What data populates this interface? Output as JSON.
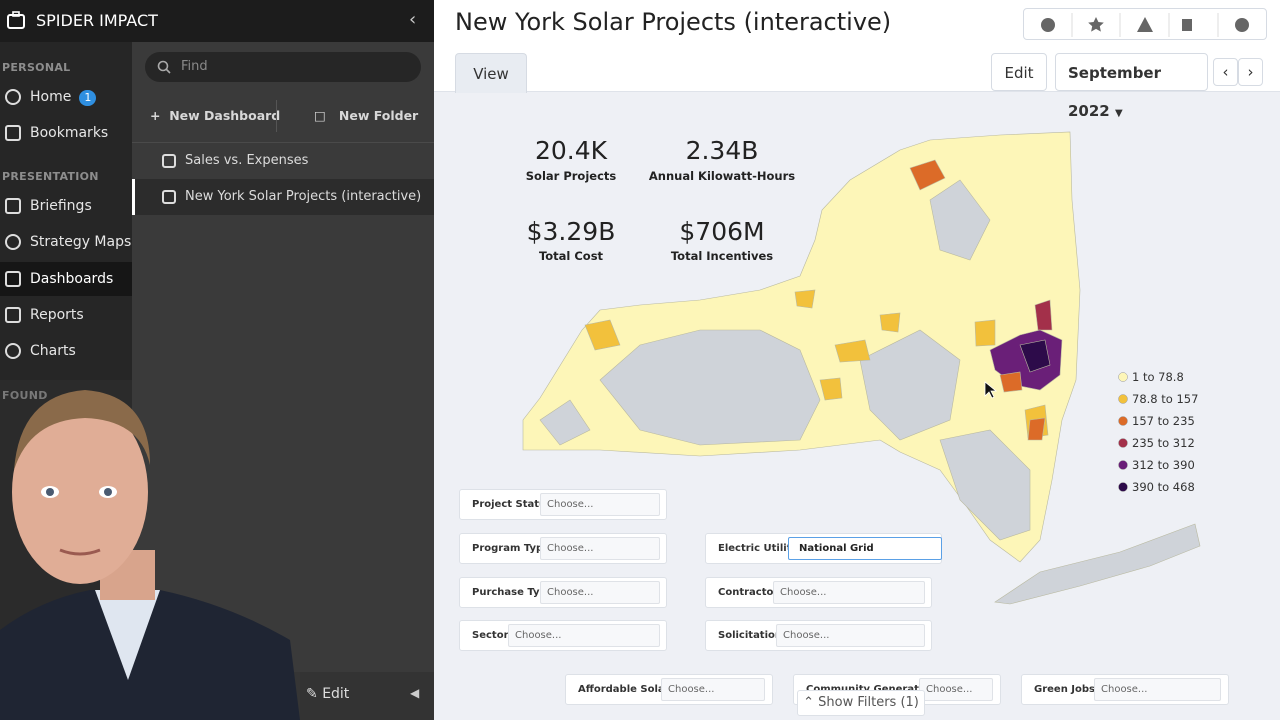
{
  "sidebar": {
    "brand": "SPIDER IMPACT",
    "sections": [
      {
        "title": "PERSONAL",
        "items": [
          {
            "label": "Home",
            "badge": "1"
          },
          {
            "label": "Bookmarks"
          }
        ]
      },
      {
        "title": "PRESENTATION",
        "items": [
          {
            "label": "Briefings"
          },
          {
            "label": "Strategy Maps"
          },
          {
            "label": "Dashboards"
          },
          {
            "label": "Reports"
          },
          {
            "label": "Charts"
          }
        ]
      },
      {
        "title": "FOUND"
      }
    ]
  },
  "panel": {
    "search_placeholder": "Find",
    "buttons": [
      "New Dashboard",
      "New Folder"
    ],
    "items": [
      "Sales vs. Expenses",
      "New York Solar Projects (interactive)"
    ],
    "footer": "Edit"
  },
  "header": {
    "title": "New York Solar Projects (interactive)",
    "tab": "View",
    "edit": "Edit",
    "period": "September 2022"
  },
  "kpis": [
    {
      "value": "20.4K",
      "label": "Solar Projects"
    },
    {
      "value": "2.34B",
      "label": "Annual Kilowatt-Hours"
    },
    {
      "value": "$3.29B",
      "label": "Total Cost"
    },
    {
      "value": "$706M",
      "label": "Total Incentives"
    }
  ],
  "legend": [
    {
      "label": "1 to 78.8",
      "color": "#fdf6b8"
    },
    {
      "label": "78.8 to 157",
      "color": "#f2c13c"
    },
    {
      "label": "157 to 235",
      "color": "#dc6b28"
    },
    {
      "label": "235 to 312",
      "color": "#a3304a"
    },
    {
      "label": "312 to 390",
      "color": "#6a1f78"
    },
    {
      "label": "390 to 468",
      "color": "#2d0b4a"
    }
  ],
  "filters": [
    {
      "label": "Project Status",
      "value": "Choose..."
    },
    {
      "label": "Program Type",
      "value": "Choose..."
    },
    {
      "label": "Purchase Type",
      "value": "Choose..."
    },
    {
      "label": "Sector",
      "value": "Choose..."
    },
    {
      "label": "Electric Utility",
      "value": "National Grid"
    },
    {
      "label": "Contractor",
      "value": "Choose..."
    },
    {
      "label": "Solicitation",
      "value": "Choose..."
    },
    {
      "label": "Affordable Solar?",
      "value": "Choose..."
    },
    {
      "label": "Community Generation?",
      "value": "Choose..."
    },
    {
      "label": "Green Jobs?",
      "value": "Choose..."
    }
  ],
  "show_filters": "Show Filters (1)"
}
